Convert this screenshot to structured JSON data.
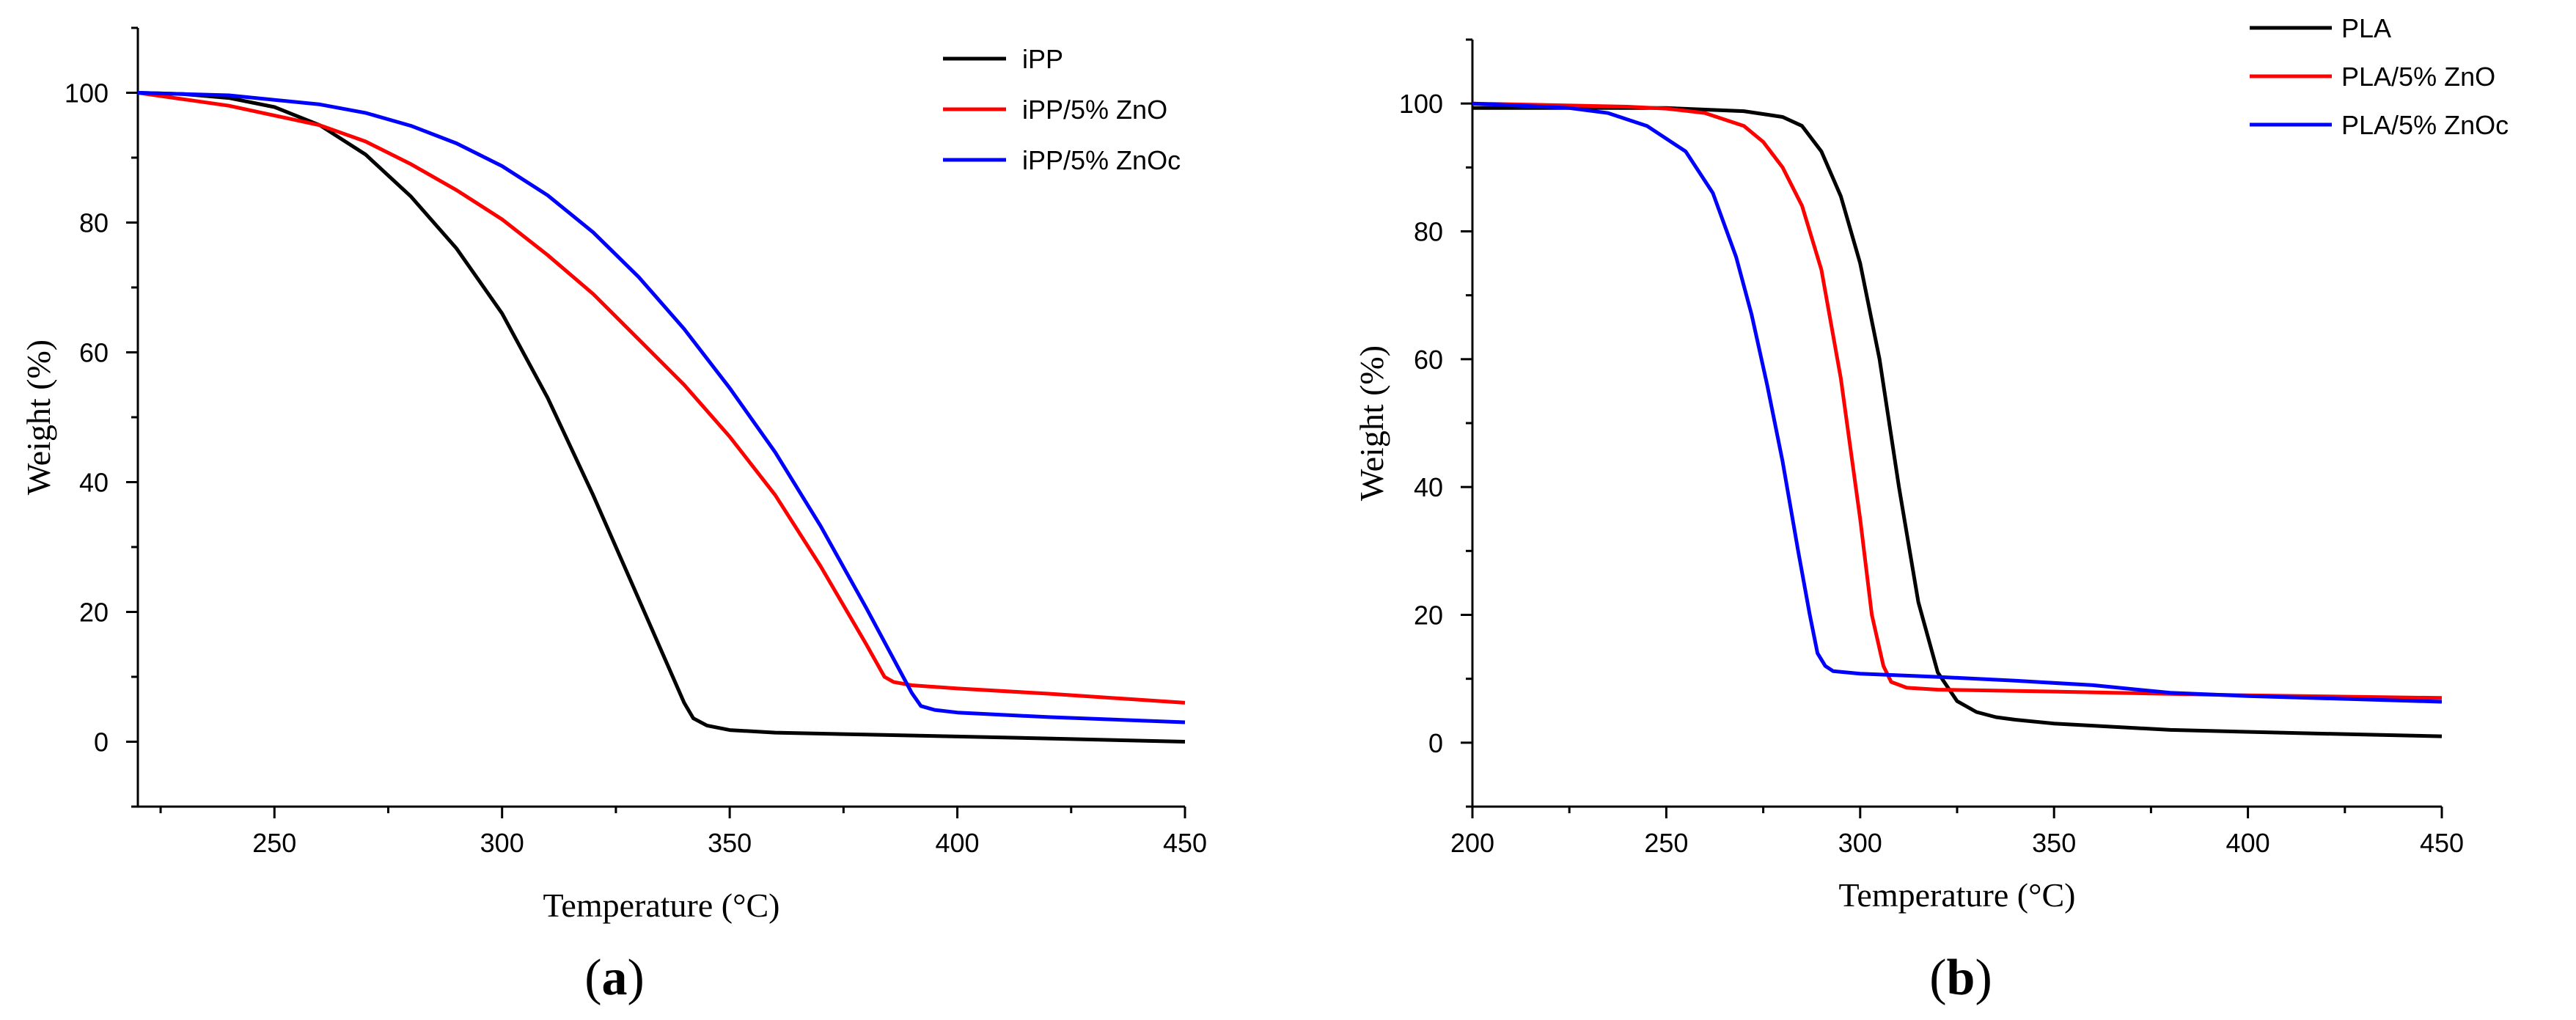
{
  "chart_data": [
    {
      "type": "line",
      "panel_label_open": "(",
      "panel_label_letter": "a",
      "panel_label_close": ")",
      "xlabel": "Temperature (°C)",
      "ylabel": "Weight (%)",
      "xlim": [
        220,
        450
      ],
      "ylim": [
        -10,
        110
      ],
      "xticks": [
        250,
        300,
        350,
        400,
        450
      ],
      "yticks": [
        0,
        20,
        40,
        60,
        80,
        100
      ],
      "legend_position": "top-right",
      "series": [
        {
          "name": "iPP",
          "color": "#000000",
          "x": [
            220,
            230,
            240,
            250,
            260,
            270,
            280,
            290,
            300,
            310,
            320,
            330,
            335,
            340,
            342,
            345,
            350,
            360,
            380,
            400,
            420,
            450
          ],
          "y": [
            100,
            99.8,
            99.2,
            97.8,
            95,
            90.5,
            84,
            76,
            66,
            53,
            38,
            22,
            14,
            6,
            3.6,
            2.5,
            1.8,
            1.4,
            1.1,
            0.8,
            0.5,
            0
          ]
        },
        {
          "name": "iPP/5% ZnO",
          "color": "#ff0000",
          "x": [
            220,
            240,
            260,
            270,
            280,
            290,
            300,
            310,
            320,
            330,
            340,
            350,
            360,
            370,
            380,
            384,
            386,
            390,
            400,
            420,
            450
          ],
          "y": [
            100,
            98,
            95,
            92.5,
            89,
            85,
            80.5,
            75,
            69,
            62,
            55,
            47,
            38,
            27,
            15,
            10,
            9.2,
            8.7,
            8.2,
            7.4,
            6
          ]
        },
        {
          "name": "iPP/5% ZnOc",
          "color": "#0000ff",
          "x": [
            220,
            240,
            260,
            270,
            280,
            290,
            300,
            310,
            320,
            330,
            340,
            350,
            360,
            370,
            380,
            390,
            392,
            395,
            400,
            420,
            450
          ],
          "y": [
            100,
            99.6,
            98.2,
            96.9,
            94.9,
            92.2,
            88.7,
            84.2,
            78.5,
            71.6,
            63.6,
            54.5,
            44.6,
            33.2,
            20.6,
            7.5,
            5.5,
            4.9,
            4.5,
            3.8,
            3
          ]
        }
      ]
    },
    {
      "type": "line",
      "panel_label_open": "(",
      "panel_label_letter": "b",
      "panel_label_close": ")",
      "xlabel": "Temperature (°C)",
      "ylabel": "Weight (%)",
      "xlim": [
        200,
        450
      ],
      "ylim": [
        -10,
        110
      ],
      "xticks": [
        200,
        250,
        300,
        350,
        400,
        450
      ],
      "yticks": [
        0,
        20,
        40,
        60,
        80,
        100
      ],
      "legend_position": "top-right",
      "series": [
        {
          "name": "PLA",
          "color": "#000000",
          "x": [
            200,
            250,
            270,
            280,
            285,
            290,
            295,
            300,
            305,
            310,
            315,
            320,
            325,
            330,
            335,
            340,
            350,
            380,
            420,
            450
          ],
          "y": [
            99.3,
            99.3,
            98.8,
            97.9,
            96.5,
            92.5,
            85.5,
            75,
            60,
            40,
            22,
            11,
            6.5,
            4.8,
            4,
            3.6,
            3,
            2,
            1.4,
            1
          ]
        },
        {
          "name": "PLA/5% ZnO",
          "color": "#ff0000",
          "x": [
            200,
            240,
            250,
            260,
            270,
            275,
            280,
            285,
            290,
            295,
            300,
            303,
            306,
            308,
            312,
            320,
            350,
            400,
            450
          ],
          "y": [
            100,
            99.5,
            99.2,
            98.5,
            96.5,
            94,
            90,
            84,
            74,
            57,
            35,
            20,
            12,
            9.5,
            8.6,
            8.3,
            8,
            7.4,
            7
          ]
        },
        {
          "name": "PLA/5% ZnOc",
          "color": "#0000ff",
          "x": [
            200,
            225,
            235,
            245,
            255,
            262,
            268,
            272,
            276,
            280,
            284,
            287,
            289,
            291,
            293,
            300,
            320,
            340,
            360,
            380,
            400,
            450
          ],
          "y": [
            100,
            99.3,
            98.5,
            96.5,
            92.5,
            86,
            76,
            67,
            56,
            44,
            30,
            20,
            14,
            12,
            11.2,
            10.8,
            10.3,
            9.7,
            9,
            7.8,
            7.3,
            6.4
          ]
        }
      ]
    }
  ]
}
